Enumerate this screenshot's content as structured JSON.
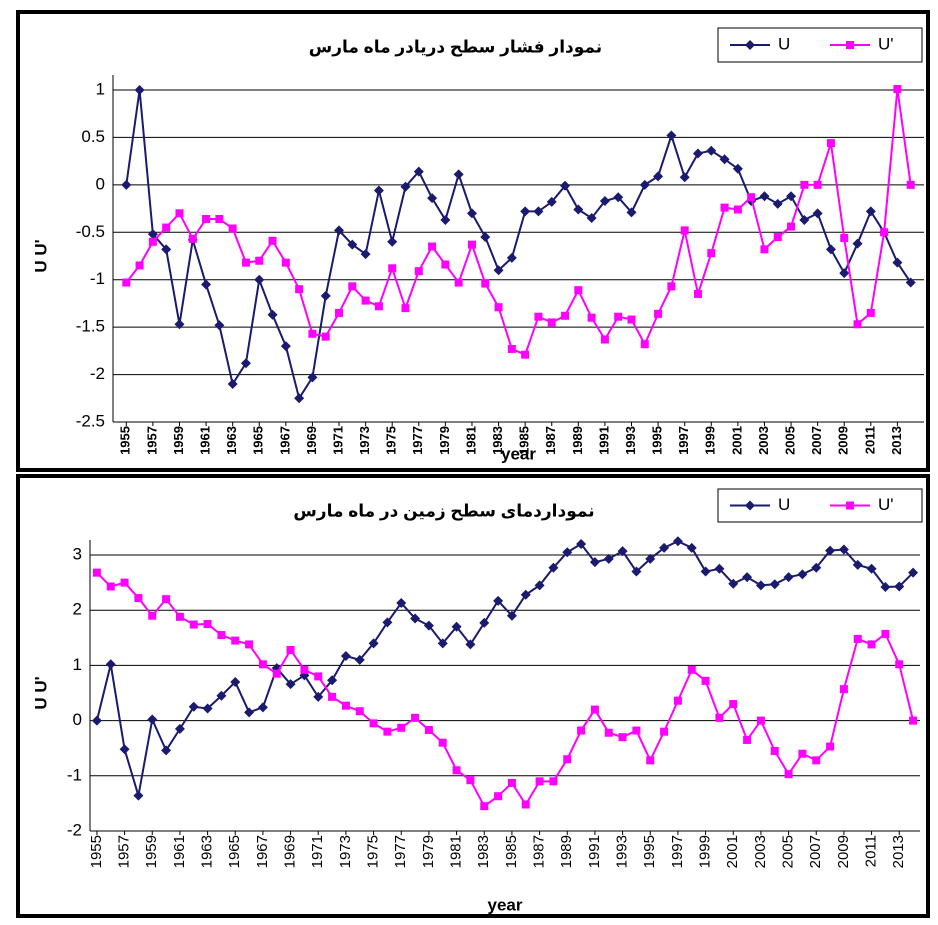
{
  "chart_data": [
    {
      "type": "line",
      "title": "نمودار فشار سطح دریادر ماه مارس",
      "xlabel": "year",
      "ylabel": "U U'",
      "x": [
        1955,
        1956,
        1957,
        1958,
        1959,
        1960,
        1961,
        1962,
        1963,
        1964,
        1965,
        1966,
        1967,
        1968,
        1969,
        1970,
        1971,
        1972,
        1973,
        1974,
        1975,
        1976,
        1977,
        1978,
        1979,
        1980,
        1981,
        1982,
        1983,
        1984,
        1985,
        1986,
        1987,
        1988,
        1989,
        1990,
        1991,
        1992,
        1993,
        1994,
        1995,
        1996,
        1997,
        1998,
        1999,
        2000,
        2001,
        2002,
        2003,
        2004,
        2005,
        2006,
        2007,
        2008,
        2009,
        2010,
        2011,
        2012,
        2013,
        2014
      ],
      "xlim": [
        1954,
        2015
      ],
      "xticks": [
        1955,
        1957,
        1959,
        1961,
        1963,
        1965,
        1967,
        1969,
        1971,
        1973,
        1975,
        1977,
        1979,
        1981,
        1983,
        1985,
        1987,
        1989,
        1991,
        1993,
        1995,
        1997,
        1999,
        2001,
        2003,
        2005,
        2007,
        2009,
        2011,
        2013
      ],
      "ylim": [
        -2.5,
        1
      ],
      "yticks": [
        1,
        0.5,
        0,
        -0.5,
        -1,
        -1.5,
        -2,
        -2.5
      ],
      "grid": true,
      "legend": "top-right",
      "series": [
        {
          "name": "U",
          "color": "#1a1a6e",
          "marker": "diamond",
          "values": [
            0,
            1,
            -0.52,
            -0.68,
            -1.47,
            -0.58,
            -1.05,
            -1.48,
            -2.1,
            -1.88,
            -1.0,
            -1.37,
            -1.7,
            -2.25,
            -2.03,
            -1.17,
            -0.48,
            -0.63,
            -0.73,
            -0.06,
            -0.6,
            -0.02,
            0.14,
            -0.14,
            -0.37,
            0.11,
            -0.3,
            -0.55,
            -0.9,
            -0.77,
            -0.28,
            -0.28,
            -0.18,
            -0.01,
            -0.26,
            -0.35,
            -0.17,
            -0.13,
            -0.29,
            0,
            0.09,
            0.52,
            0.08,
            0.33,
            0.36,
            0.27,
            0.17,
            -0.17,
            -0.12,
            -0.2,
            -0.12,
            -0.37,
            -0.3,
            -0.68,
            -0.93,
            -0.62,
            -0.28,
            -0.5,
            -0.82,
            -1.03
          ]
        },
        {
          "name": "U'",
          "color": "#ff00ff",
          "marker": "square",
          "values": [
            -1.03,
            -0.85,
            -0.6,
            -0.45,
            -0.3,
            -0.57,
            -0.36,
            -0.36,
            -0.46,
            -0.82,
            -0.8,
            -0.59,
            -0.82,
            -1.1,
            -1.57,
            -1.6,
            -1.35,
            -1.07,
            -1.22,
            -1.28,
            -0.88,
            -1.3,
            -0.91,
            -0.65,
            -0.84,
            -1.03,
            -0.63,
            -1.04,
            -1.29,
            -1.73,
            -1.79,
            -1.39,
            -1.45,
            -1.38,
            -1.11,
            -1.4,
            -1.63,
            -1.39,
            -1.42,
            -1.68,
            -1.36,
            -1.07,
            -0.48,
            -1.15,
            -0.72,
            -0.24,
            -0.26,
            -0.13,
            -0.68,
            -0.55,
            -0.44,
            0,
            0,
            0.44,
            -0.56,
            -1.47,
            -1.35,
            -0.5,
            1.01,
            0
          ]
        }
      ]
    },
    {
      "type": "line",
      "title": "نمودار‌دمای سطح زمین در ماه مارس",
      "xlabel": "year",
      "ylabel": "U U'",
      "x": [
        1955,
        1956,
        1957,
        1958,
        1959,
        1960,
        1961,
        1962,
        1963,
        1964,
        1965,
        1966,
        1967,
        1968,
        1969,
        1970,
        1971,
        1972,
        1973,
        1974,
        1975,
        1976,
        1977,
        1978,
        1979,
        1980,
        1981,
        1982,
        1983,
        1984,
        1985,
        1986,
        1987,
        1988,
        1989,
        1990,
        1991,
        1992,
        1993,
        1994,
        1995,
        1996,
        1997,
        1998,
        1999,
        2000,
        2001,
        2002,
        2003,
        2004,
        2005,
        2006,
        2007,
        2008,
        2009,
        2010,
        2011,
        2012,
        2013,
        2014
      ],
      "xlim": [
        1954.5,
        2014.5
      ],
      "xticks": [
        1955,
        1957,
        1959,
        1961,
        1963,
        1965,
        1967,
        1969,
        1971,
        1973,
        1975,
        1977,
        1979,
        1981,
        1983,
        1985,
        1987,
        1989,
        1991,
        1993,
        1995,
        1997,
        1999,
        2001,
        2003,
        2005,
        2007,
        2009,
        2011,
        2013
      ],
      "ylim": [
        -2,
        3
      ],
      "yticks": [
        3,
        2,
        1,
        0,
        -1,
        -2
      ],
      "grid": true,
      "legend": "top-right",
      "series": [
        {
          "name": "U",
          "color": "#1a1a6e",
          "marker": "diamond",
          "values": [
            0,
            1.02,
            -0.52,
            -1.36,
            0.02,
            -0.54,
            -0.15,
            0.25,
            0.22,
            0.45,
            0.7,
            0.15,
            0.24,
            0.95,
            0.66,
            0.82,
            0.43,
            0.73,
            1.17,
            1.1,
            1.4,
            1.78,
            2.13,
            1.85,
            1.72,
            1.4,
            1.7,
            1.38,
            1.77,
            2.17,
            1.9,
            2.28,
            2.45,
            2.77,
            3.05,
            3.2,
            2.87,
            2.93,
            3.07,
            2.7,
            2.93,
            3.13,
            3.25,
            3.13,
            2.7,
            2.75,
            2.48,
            2.6,
            2.45,
            2.47,
            2.6,
            2.65,
            2.77,
            3.08,
            3.1,
            2.82,
            2.75,
            2.42,
            2.43,
            2.68
          ]
        },
        {
          "name": "U'",
          "color": "#ff00ff",
          "marker": "square",
          "values": [
            2.68,
            2.43,
            2.5,
            2.22,
            1.9,
            2.2,
            1.88,
            1.74,
            1.75,
            1.55,
            1.45,
            1.38,
            1.02,
            0.85,
            1.28,
            0.92,
            0.8,
            0.43,
            0.27,
            0.17,
            -0.05,
            -0.2,
            -0.13,
            0.05,
            -0.17,
            -0.4,
            -0.9,
            -1.08,
            -1.55,
            -1.37,
            -1.13,
            -1.52,
            -1.1,
            -1.1,
            -0.7,
            -0.18,
            0.2,
            -0.22,
            -0.3,
            -0.18,
            -0.72,
            -0.2,
            0.36,
            0.92,
            0.72,
            0.05,
            0.3,
            -0.35,
            0,
            -0.55,
            -0.97,
            -0.6,
            -0.72,
            -0.47,
            0.57,
            1.48,
            1.38,
            1.57,
            1.02,
            0
          ]
        }
      ]
    }
  ]
}
